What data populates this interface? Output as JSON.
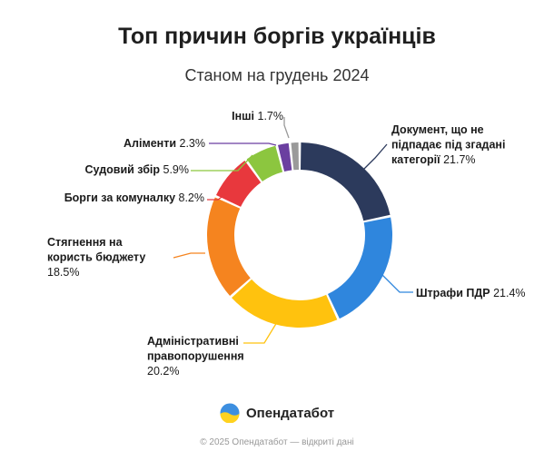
{
  "title": "Топ причин боргів українців",
  "subtitle": "Станом на грудень 2024",
  "brand": {
    "name": "Опендатабот"
  },
  "footer": "© 2025 Опендатабот — відкриті дані",
  "chart_data": {
    "type": "pie",
    "variant": "donut",
    "title": "Топ причин боргів українців",
    "subtitle": "Станом на грудень 2024",
    "unit": "%",
    "categories": [
      "Документ, що не підпадає під згадані категорії",
      "Штрафи ПДР",
      "Адміністративні правопорушення",
      "Стягнення на користь бюджету",
      "Борги за комуналку",
      "Судовий збір",
      "Аліменти",
      "Інші"
    ],
    "values": [
      21.7,
      21.4,
      20.2,
      18.5,
      8.2,
      5.9,
      2.3,
      1.7
    ],
    "colors": [
      "#2c3a5c",
      "#2f86dd",
      "#ffc20e",
      "#f5841f",
      "#e8383d",
      "#8cc63f",
      "#6b3fa0",
      "#9a9a9a"
    ],
    "labels": [
      {
        "name_lines": [
          "Документ, що не",
          "підпадає під згадані",
          "категорії"
        ],
        "value_text": "21.7%"
      },
      {
        "name_lines": [
          "Штрафи ПДР"
        ],
        "value_text": "21.4%"
      },
      {
        "name_lines": [
          "Адміністративні",
          "правопорушення"
        ],
        "value_text": "20.2%"
      },
      {
        "name_lines": [
          "Стягнення на",
          "користь бюджету"
        ],
        "value_text": "18.5%"
      },
      {
        "name_lines": [
          "Борги за комуналку"
        ],
        "value_text": "8.2%"
      },
      {
        "name_lines": [
          "Судовий збір"
        ],
        "value_text": "5.9%"
      },
      {
        "name_lines": [
          "Аліменти"
        ],
        "value_text": "2.3%"
      },
      {
        "name_lines": [
          "Інші"
        ],
        "value_text": "1.7%"
      }
    ],
    "legend": "none"
  }
}
